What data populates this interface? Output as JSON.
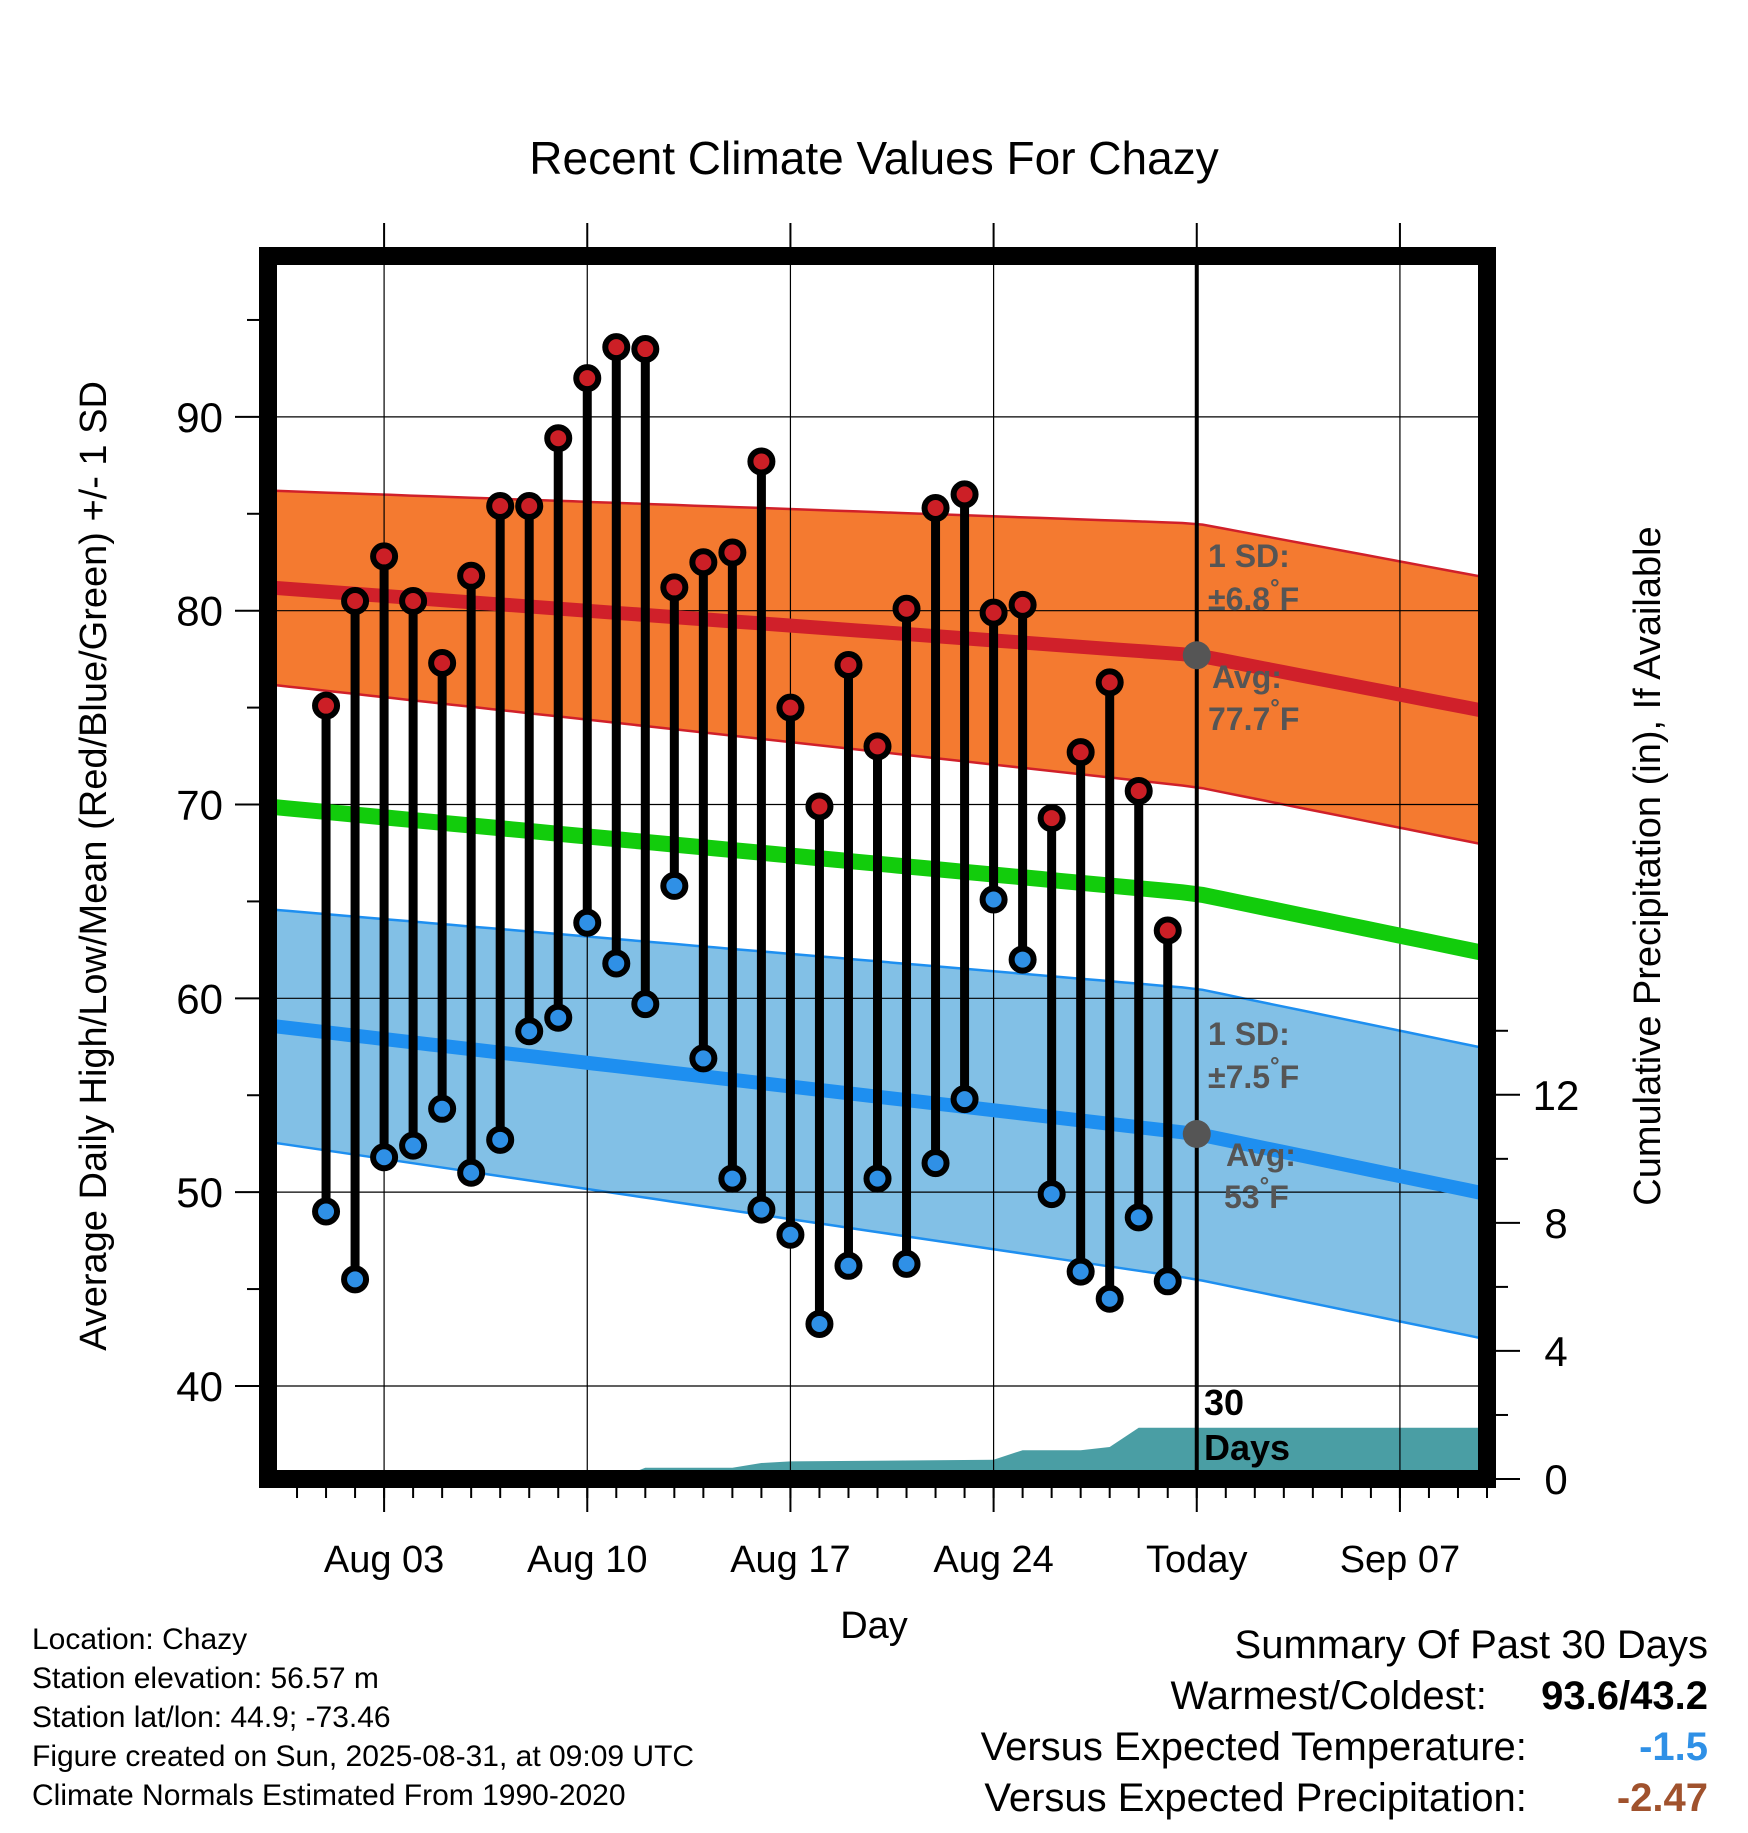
{
  "chart_data": {
    "type": "line",
    "title": "Recent Climate Values For Chazy",
    "xlabel": "Day",
    "ylabel": "Average Daily High/Low/Mean (Red/Blue/Green) +/- 1 SD",
    "y2label": "Cumulative Precipitation (in), If Available",
    "ylim": [
      35.2,
      98.3
    ],
    "y2lim": [
      0,
      38.2
    ],
    "xlim": [
      "2025-07-30",
      "2025-09-10"
    ],
    "yticks": [
      "40",
      "50",
      "60",
      "70",
      "80",
      "90"
    ],
    "y2ticks": [
      "0",
      "4",
      "8",
      "12"
    ],
    "xticks": [
      "Aug 03",
      "Aug 10",
      "Aug 17",
      "Aug 24",
      "Today",
      "Sep 07"
    ],
    "xtick_dates": [
      "2025-08-03",
      "2025-08-10",
      "2025-08-17",
      "2025-08-24",
      "2025-08-31",
      "2025-09-07"
    ],
    "today": "2025-08-31",
    "grid": true,
    "days": [
      "2025-08-01",
      "2025-08-02",
      "2025-08-03",
      "2025-08-04",
      "2025-08-05",
      "2025-08-06",
      "2025-08-07",
      "2025-08-08",
      "2025-08-09",
      "2025-08-10",
      "2025-08-11",
      "2025-08-12",
      "2025-08-13",
      "2025-08-14",
      "2025-08-15",
      "2025-08-16",
      "2025-08-17",
      "2025-08-18",
      "2025-08-19",
      "2025-08-20",
      "2025-08-21",
      "2025-08-22",
      "2025-08-23",
      "2025-08-24",
      "2025-08-25",
      "2025-08-26",
      "2025-08-27",
      "2025-08-28",
      "2025-08-29",
      "2025-08-30"
    ],
    "highs": [
      75.1,
      80.5,
      82.8,
      80.5,
      77.3,
      81.8,
      85.4,
      85.4,
      88.9,
      92.0,
      93.6,
      93.5,
      81.2,
      82.5,
      83.0,
      87.7,
      75.0,
      69.9,
      77.2,
      73.0,
      80.1,
      85.3,
      86.0,
      79.9,
      80.3,
      69.3,
      72.7,
      76.3,
      70.7,
      63.5
    ],
    "lows": [
      49.0,
      45.5,
      51.8,
      52.4,
      54.3,
      51.0,
      52.7,
      58.3,
      59.0,
      63.9,
      61.8,
      59.7,
      65.8,
      56.9,
      50.7,
      49.1,
      47.8,
      43.2,
      46.2,
      50.7,
      46.3,
      51.5,
      54.8,
      65.1,
      62.0,
      49.9,
      45.9,
      44.5,
      48.7,
      45.4
    ],
    "normal_dates": [
      "2025-07-30",
      "2025-08-31",
      "2025-09-10"
    ],
    "normal_high": [
      81.2,
      77.7,
      74.8
    ],
    "normal_high_sd": [
      5.0,
      6.8,
      6.9
    ],
    "normal_low": [
      58.6,
      53.0,
      49.9
    ],
    "normal_low_sd": [
      6.0,
      7.5,
      7.5
    ],
    "normal_mean": [
      69.9,
      65.4,
      62.3
    ],
    "precip": {
      "dates": [
        "2025-07-30",
        "2025-08-11",
        "2025-08-12",
        "2025-08-14",
        "2025-08-15",
        "2025-08-16",
        "2025-08-17",
        "2025-08-24",
        "2025-08-25",
        "2025-08-27",
        "2025-08-28",
        "2025-08-29",
        "2025-09-10"
      ],
      "values": [
        0,
        0,
        0.35,
        0.35,
        0.35,
        0.5,
        0.55,
        0.6,
        0.9,
        0.9,
        1.0,
        1.6,
        1.6
      ]
    },
    "annotations": {
      "high_sd": "±6.8",
      "high_avg": "77.7",
      "low_sd": "±7.5",
      "low_avg": "53",
      "sd_label": "1 SD:",
      "avg_label": "Avg:",
      "unit": "°F",
      "days_num": "30",
      "days_word": "Days"
    },
    "colors": {
      "high_band": "#f47a30",
      "high_line": "#d0202a",
      "low_band": "#82c0e6",
      "low_line": "#1e8ff0",
      "mean_line": "#12cc0c",
      "precip": "#4a9ea4",
      "high_marker": "#cc1f26",
      "low_marker": "#2f90e6",
      "annotation": "#555555"
    }
  },
  "info": {
    "location": "Location: Chazy",
    "elevation": "Station elevation: 56.57 m",
    "latlon": "Station lat/lon: 44.9; -73.46",
    "created": "Figure created on Sun, 2025-08-31, at 09:09 UTC",
    "normals": "Climate Normals Estimated From 1990-2020"
  },
  "summary": {
    "title": "Summary Of Past 30 Days",
    "warm_label": "Warmest/Coldest:",
    "warm_value": "93.6/43.2",
    "temp_label": "Versus Expected Temperature:",
    "temp_value": "-1.5",
    "temp_color": "#2f90e6",
    "precip_label": "Versus Expected Precipitation:",
    "precip_value": "-2.47",
    "precip_color": "#a0522d"
  }
}
